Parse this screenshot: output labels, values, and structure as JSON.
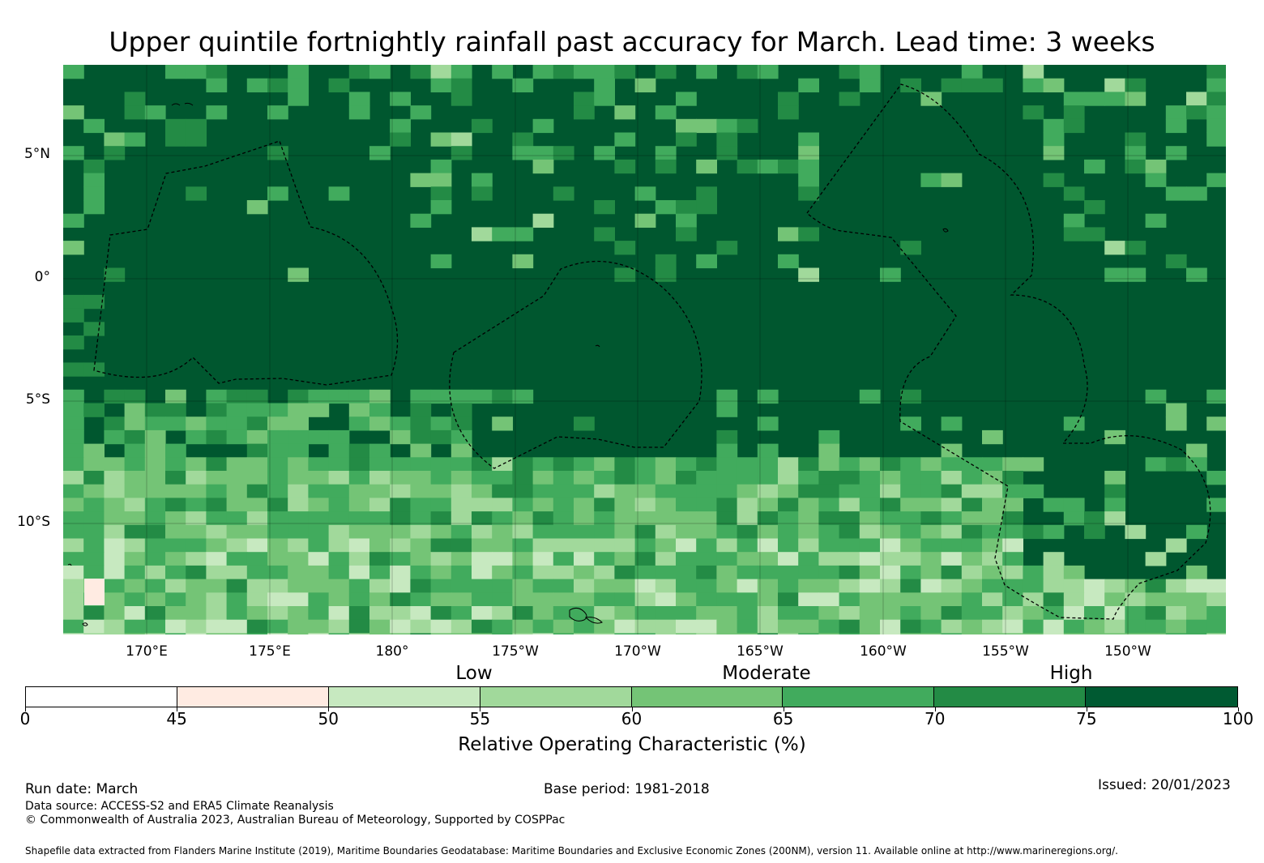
{
  "title": "Upper quintile fortnightly rainfall past accuracy for March. Lead time: 3 weeks",
  "map": {
    "lat_labels": [
      "5°N",
      "0°",
      "5°S",
      "10°S"
    ],
    "lon_labels": [
      "170°E",
      "175°E",
      "180°",
      "175°W",
      "170°W",
      "165°W",
      "160°W",
      "155°W",
      "150°W"
    ],
    "colors": {
      "background_dark": "#00572f",
      "eez_line": "#000000"
    }
  },
  "legend": {
    "categories": [
      "Low",
      "Moderate",
      "High"
    ],
    "ticks": [
      "0",
      "45",
      "50",
      "55",
      "60",
      "65",
      "70",
      "75",
      "100"
    ],
    "bins": [
      {
        "from": 0,
        "to": 45,
        "color": "#ffffff"
      },
      {
        "from": 45,
        "to": 50,
        "color": "#ffebe2"
      },
      {
        "from": 50,
        "to": 55,
        "color": "#c7e9c0"
      },
      {
        "from": 55,
        "to": 60,
        "color": "#a1d99b"
      },
      {
        "from": 60,
        "to": 65,
        "color": "#74c476"
      },
      {
        "from": 65,
        "to": 70,
        "color": "#41ab5d"
      },
      {
        "from": 70,
        "to": 75,
        "color": "#238b45"
      },
      {
        "from": 75,
        "to": 100,
        "color": "#005a32"
      }
    ],
    "title": "Relative Operating Characteristic (%)"
  },
  "footer": {
    "run_date": "Run date: March",
    "base_period": "Base period: 1981-2018",
    "issued": "Issued: 20/01/2023",
    "data_source": "Data source: ACCESS-S2 and ERA5 Climate Reanalysis",
    "copyright": "© Commonwealth of Australia 2023, Australian Bureau of Meteorology, Supported by COSPPac",
    "shapefile": "Shapefile data extracted from Flanders Marine Institute (2019), Maritime Boundaries Geodatabase: Maritime Boundaries and Exclusive Economic Zones (200NM), version 11. Available online at http://www.marineregions.org/."
  }
}
